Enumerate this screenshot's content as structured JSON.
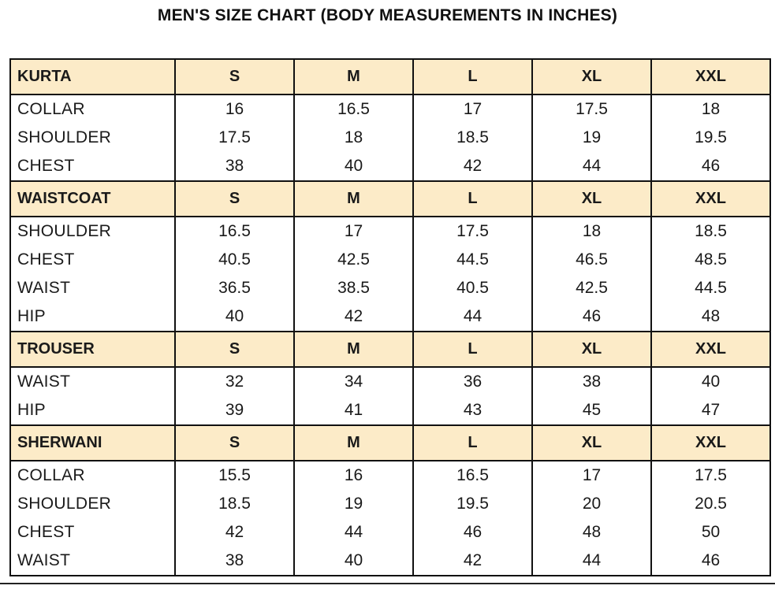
{
  "title": "MEN'S SIZE CHART (BODY MEASUREMENTS IN INCHES)",
  "sizes": [
    "S",
    "M",
    "L",
    "XL",
    "XXL"
  ],
  "colors": {
    "header_bg": "#fcebc8",
    "border": "#111111"
  },
  "sections": [
    {
      "name": "KURTA",
      "rows": [
        {
          "label": "COLLAR",
          "values": [
            "16",
            "16.5",
            "17",
            "17.5",
            "18"
          ]
        },
        {
          "label": "SHOULDER",
          "values": [
            "17.5",
            "18",
            "18.5",
            "19",
            "19.5"
          ]
        },
        {
          "label": "CHEST",
          "values": [
            "38",
            "40",
            "42",
            "44",
            "46"
          ]
        }
      ]
    },
    {
      "name": "WAISTCOAT",
      "rows": [
        {
          "label": "SHOULDER",
          "values": [
            "16.5",
            "17",
            "17.5",
            "18",
            "18.5"
          ]
        },
        {
          "label": "CHEST",
          "values": [
            "40.5",
            "42.5",
            "44.5",
            "46.5",
            "48.5"
          ]
        },
        {
          "label": "WAIST",
          "values": [
            "36.5",
            "38.5",
            "40.5",
            "42.5",
            "44.5"
          ]
        },
        {
          "label": "HIP",
          "values": [
            "40",
            "42",
            "44",
            "46",
            "48"
          ]
        }
      ]
    },
    {
      "name": "TROUSER",
      "rows": [
        {
          "label": "WAIST",
          "values": [
            "32",
            "34",
            "36",
            "38",
            "40"
          ]
        },
        {
          "label": "HIP",
          "values": [
            "39",
            "41",
            "43",
            "45",
            "47"
          ]
        }
      ]
    },
    {
      "name": "SHERWANI",
      "rows": [
        {
          "label": "COLLAR",
          "values": [
            "15.5",
            "16",
            "16.5",
            "17",
            "17.5"
          ]
        },
        {
          "label": "SHOULDER",
          "values": [
            "18.5",
            "19",
            "19.5",
            "20",
            "20.5"
          ]
        },
        {
          "label": "CHEST",
          "values": [
            "42",
            "44",
            "46",
            "48",
            "50"
          ]
        },
        {
          "label": "WAIST",
          "values": [
            "38",
            "40",
            "42",
            "44",
            "46"
          ]
        }
      ]
    }
  ]
}
